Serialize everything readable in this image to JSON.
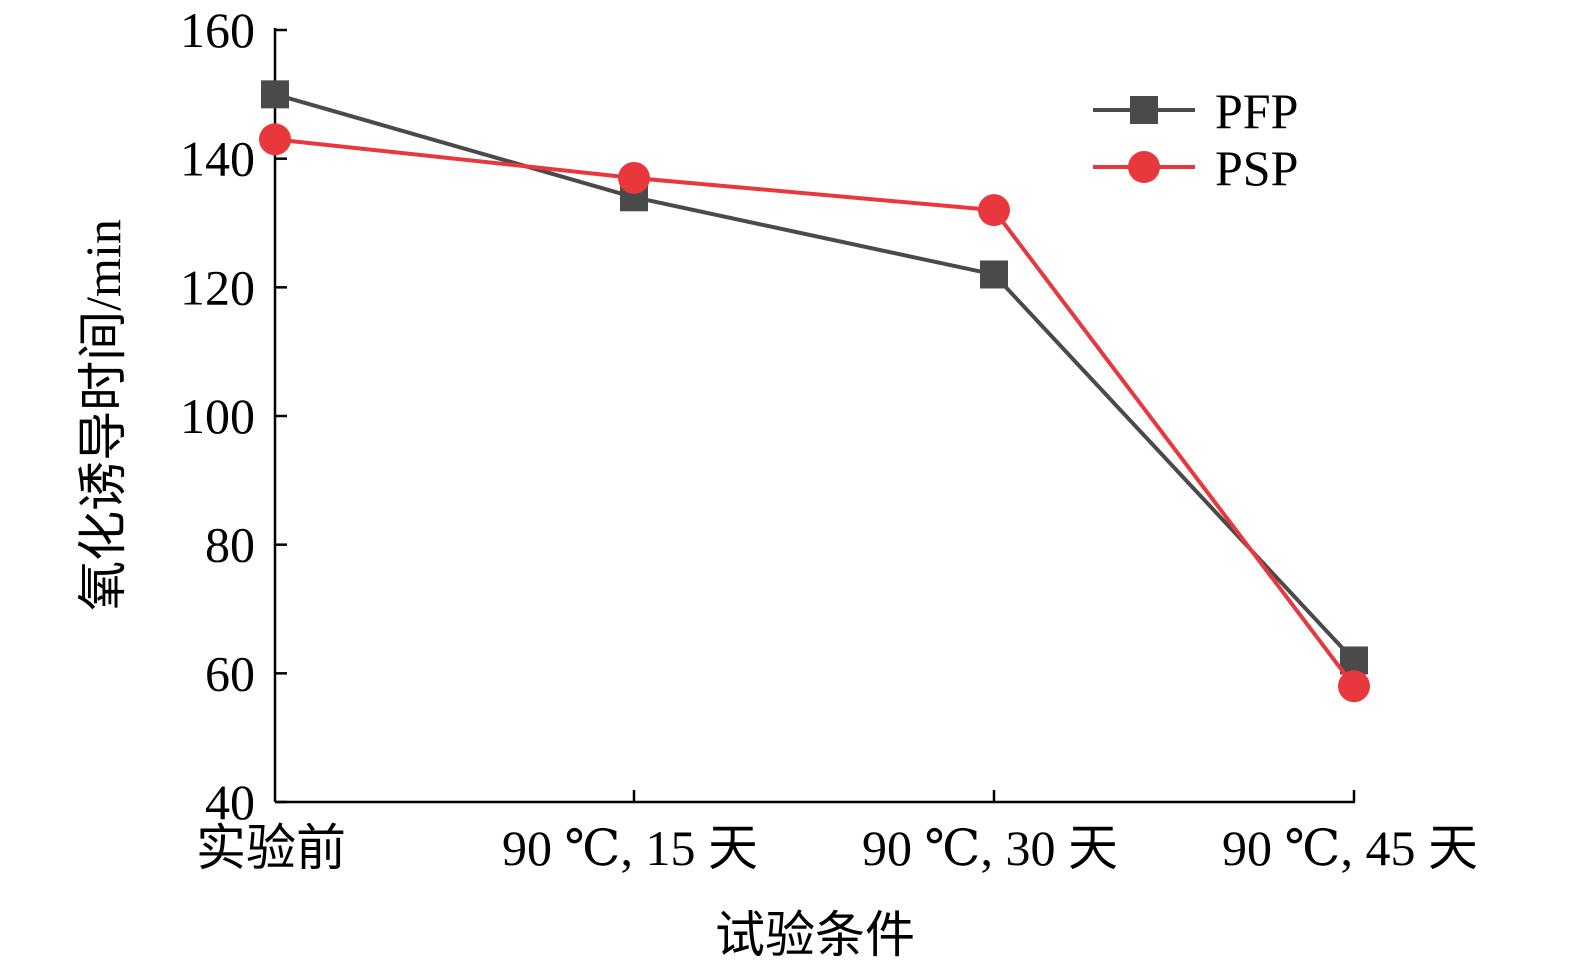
{
  "chart_data": {
    "type": "line",
    "title": "",
    "xlabel": "试验条件",
    "ylabel": "氧化诱导时间/min",
    "categories": [
      "实验前",
      "90 ℃, 15 天",
      "90 ℃, 30 天",
      "90 ℃, 45 天"
    ],
    "ylim": [
      40,
      160
    ],
    "yticks": [
      40,
      60,
      80,
      100,
      120,
      140,
      160
    ],
    "grid": false,
    "legend_position": "top-right",
    "series": [
      {
        "name": "PFP",
        "marker": "square",
        "color": "#4a4a4a",
        "values": [
          150,
          134,
          122,
          62
        ]
      },
      {
        "name": "PSP",
        "marker": "circle",
        "color": "#e8383d",
        "values": [
          143,
          137,
          132,
          58
        ]
      }
    ]
  }
}
